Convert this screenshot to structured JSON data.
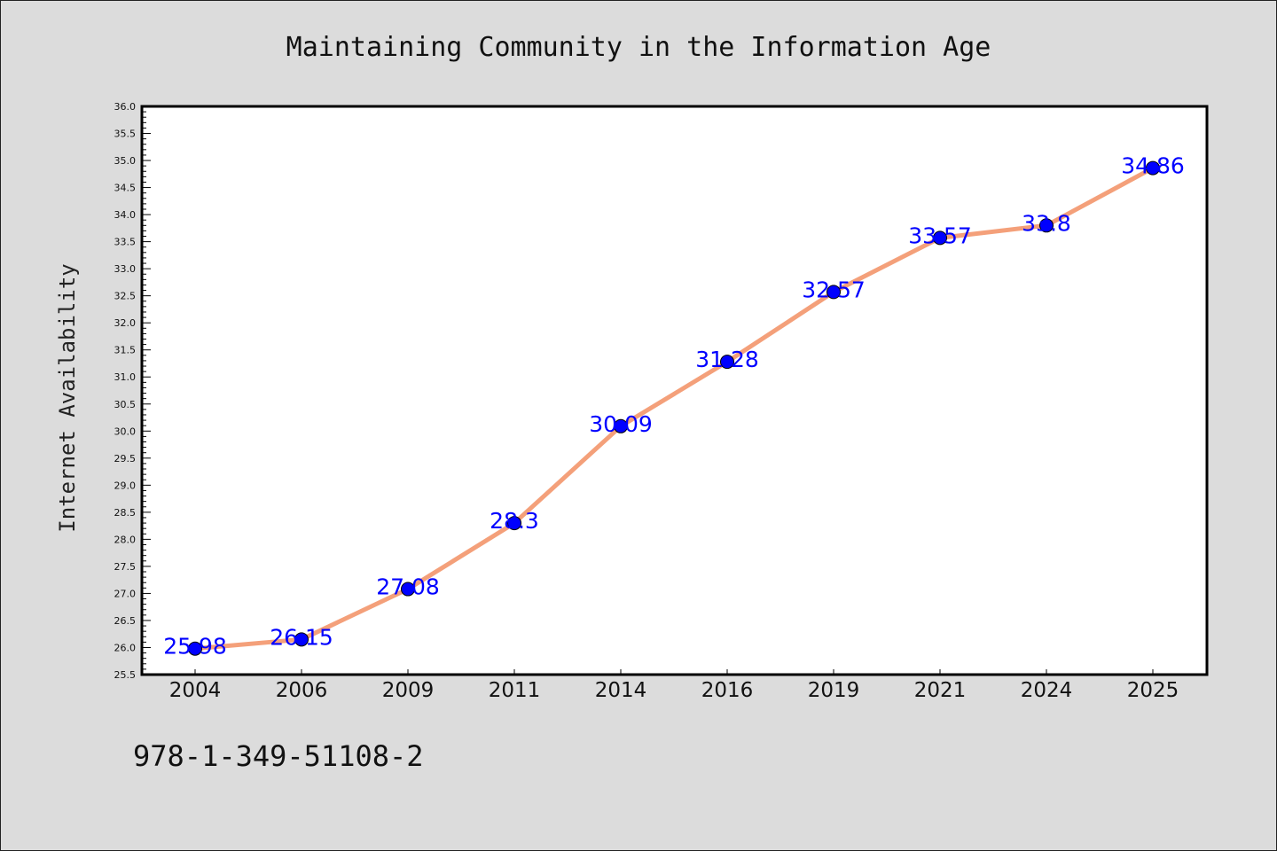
{
  "chart_data": {
    "type": "line",
    "title": "Maintaining Community in the Information Age",
    "xlabel": "",
    "ylabel": "Internet Availability",
    "categories": [
      "2004",
      "2006",
      "2009",
      "2011",
      "2014",
      "2016",
      "2019",
      "2021",
      "2024",
      "2025"
    ],
    "series": [
      {
        "values": [
          25.98,
          26.15,
          27.08,
          28.3,
          30.09,
          31.28,
          32.57,
          33.57,
          33.8,
          34.86
        ],
        "line_color": "#f4a07a",
        "marker_color": "#0000ff"
      }
    ],
    "data_labels": [
      "25.98",
      "26.15",
      "27.08",
      "28.3",
      "30.09",
      "31.28",
      "32.57",
      "33.57",
      "33.8",
      "34.86"
    ],
    "ylim": [
      25.5,
      36.0
    ],
    "yticks": [
      "25.5",
      "26.0",
      "26.5",
      "27.0",
      "27.5",
      "28.0",
      "28.5",
      "29.0",
      "29.5",
      "30.0",
      "30.5",
      "31.0",
      "31.5",
      "32.0",
      "32.5",
      "33.0",
      "33.5",
      "34.0",
      "34.5",
      "35.0",
      "35.5",
      "36.0"
    ],
    "grid": false,
    "legend": "none"
  },
  "footer": {
    "text": "978-1-349-51108-2"
  },
  "colors": {
    "background": "#dcdcdc",
    "plot_area": "#ffffff"
  }
}
